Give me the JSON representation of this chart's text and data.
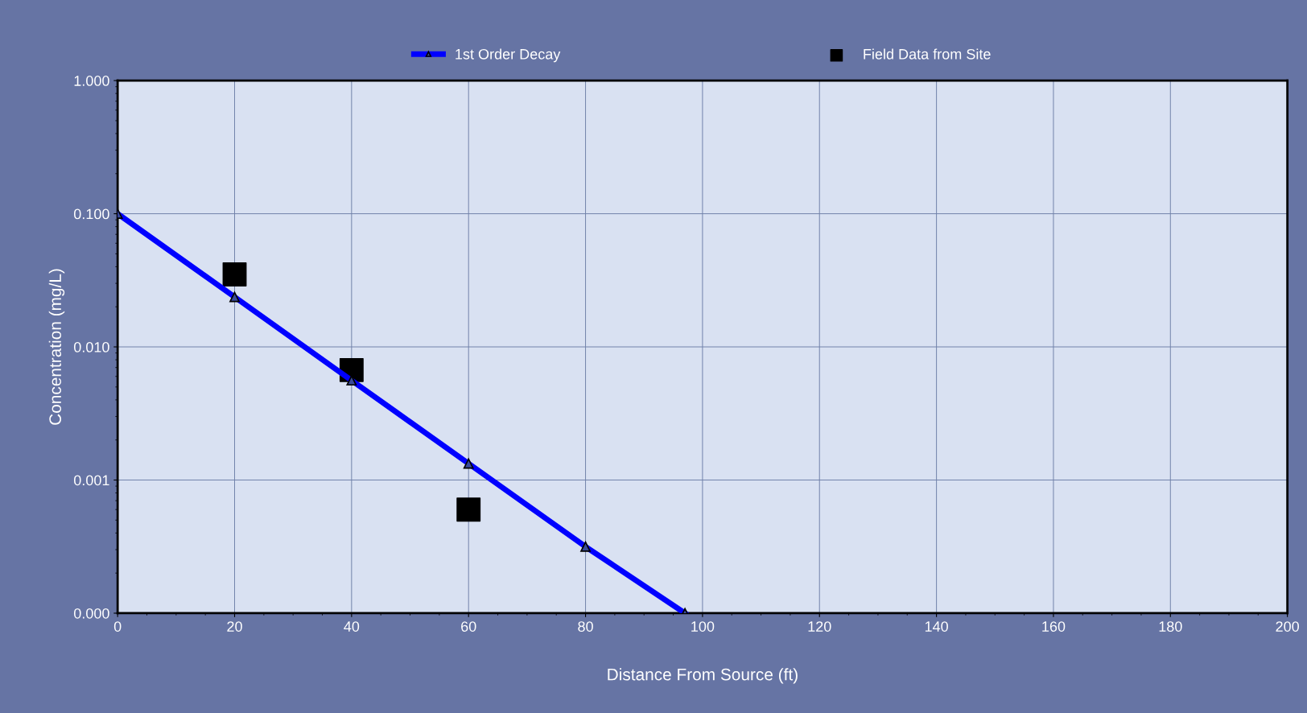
{
  "chart_data": {
    "type": "line",
    "xlabel": "Distance From Source (ft)",
    "ylabel": "Concentration (mg/L)",
    "log": "y",
    "xlim": [
      0,
      200
    ],
    "xticks": [
      0,
      20,
      40,
      60,
      80,
      100,
      120,
      140,
      160,
      180,
      200
    ],
    "ylim": [
      0.0001,
      1
    ],
    "yticks": [
      {
        "value": 1,
        "label": "1.000"
      },
      {
        "value": 0.1,
        "label": "0.100"
      },
      {
        "value": 0.01,
        "label": "0.010"
      },
      {
        "value": 0.001,
        "label": "0.001"
      },
      {
        "value": 0.0001,
        "label": "0.000"
      }
    ],
    "grid": true,
    "legend": "top",
    "series": [
      {
        "name": "1st Order Decay",
        "color": "#0000ff",
        "marker": "triangle",
        "line_style": "solid",
        "x": [
          0,
          20,
          40,
          60,
          80,
          97
        ],
        "values": [
          0.1,
          0.0237,
          0.0056,
          0.00133,
          0.000316,
          0.0001
        ]
      },
      {
        "name": "Field Data from Site",
        "type": "scatter",
        "color": "#000000",
        "marker": "square",
        "x": [
          20,
          40,
          60
        ],
        "values": [
          0.035,
          0.0067,
          0.0006
        ]
      }
    ]
  }
}
